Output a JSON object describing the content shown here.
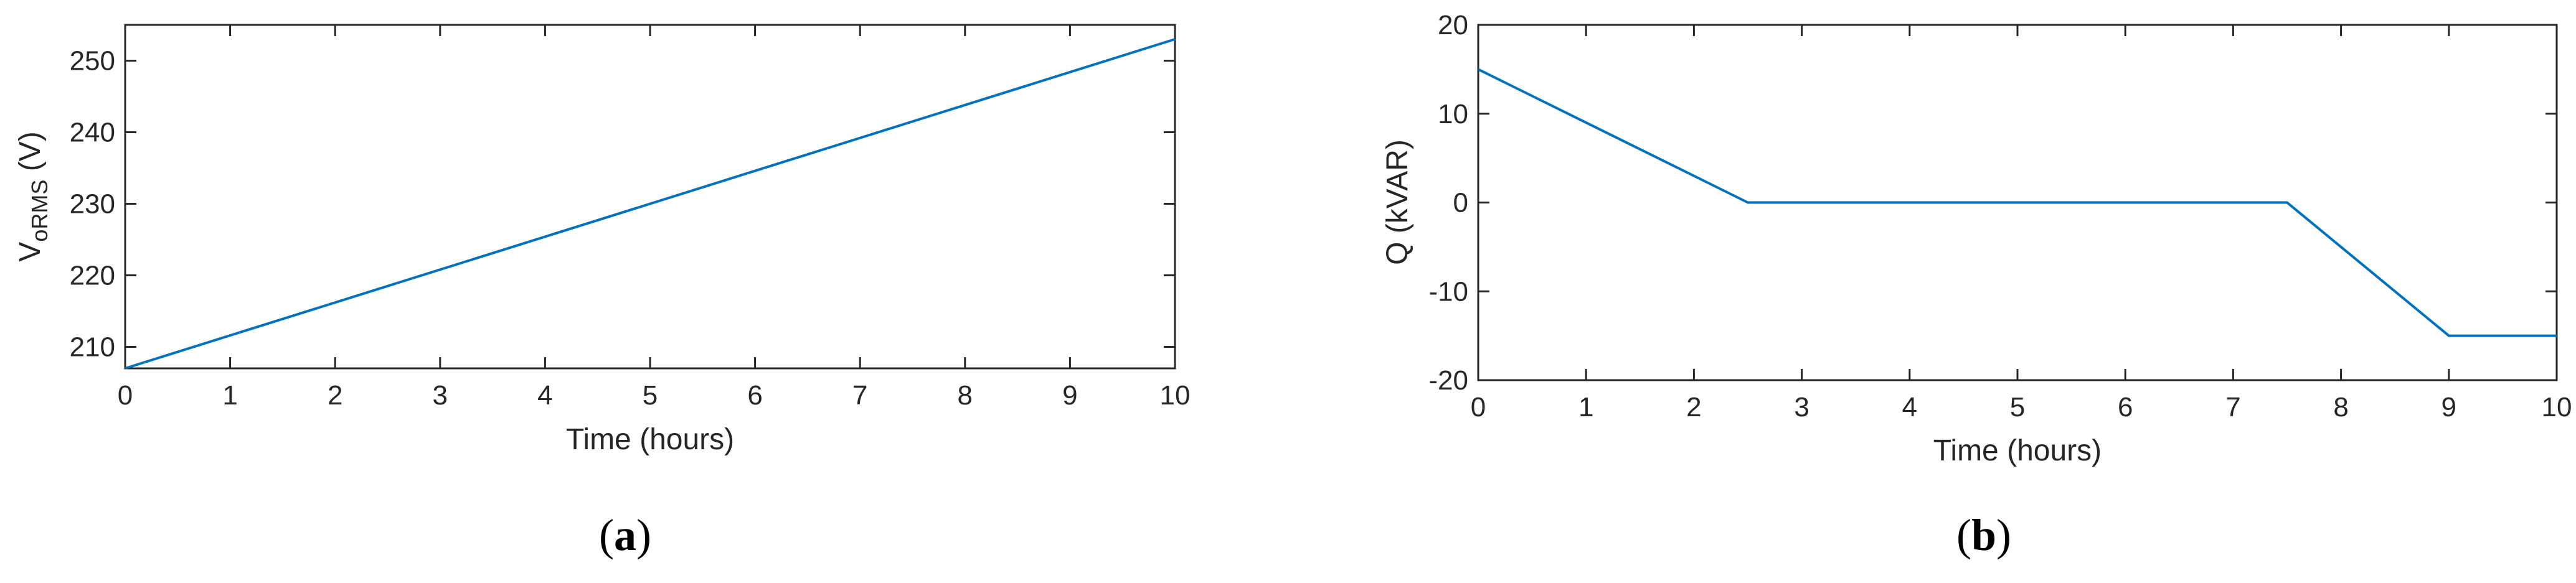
{
  "colors": {
    "series": "#0072BD",
    "axis": "#262626"
  },
  "chart_data": [
    {
      "type": "line",
      "panel_label_open": "(",
      "panel_label_letter": "a",
      "panel_label_close": ")",
      "xlabel": "Time (hours)",
      "ylabel_main": "V",
      "ylabel_sub": "oRMS",
      "ylabel_unit": " (V)",
      "xlim": [
        0,
        10
      ],
      "ylim": [
        207,
        255
      ],
      "xticks": [
        0,
        1,
        2,
        3,
        4,
        5,
        6,
        7,
        8,
        9,
        10
      ],
      "yticks": [
        210,
        220,
        230,
        240,
        250
      ],
      "series": [
        {
          "x": [
            0,
            10
          ],
          "y": [
            207,
            253
          ]
        }
      ]
    },
    {
      "type": "line",
      "panel_label_open": "(",
      "panel_label_letter": "b",
      "panel_label_close": ")",
      "xlabel": "Time (hours)",
      "ylabel": "Q (kVAR)",
      "xlim": [
        0,
        10
      ],
      "ylim": [
        -20,
        20
      ],
      "xticks": [
        0,
        1,
        2,
        3,
        4,
        5,
        6,
        7,
        8,
        9,
        10
      ],
      "yticks": [
        -20,
        -10,
        0,
        10,
        20
      ],
      "series": [
        {
          "x": [
            0,
            2.5,
            7.5,
            9,
            10
          ],
          "y": [
            15,
            0,
            0,
            -15,
            -15
          ]
        }
      ]
    }
  ]
}
